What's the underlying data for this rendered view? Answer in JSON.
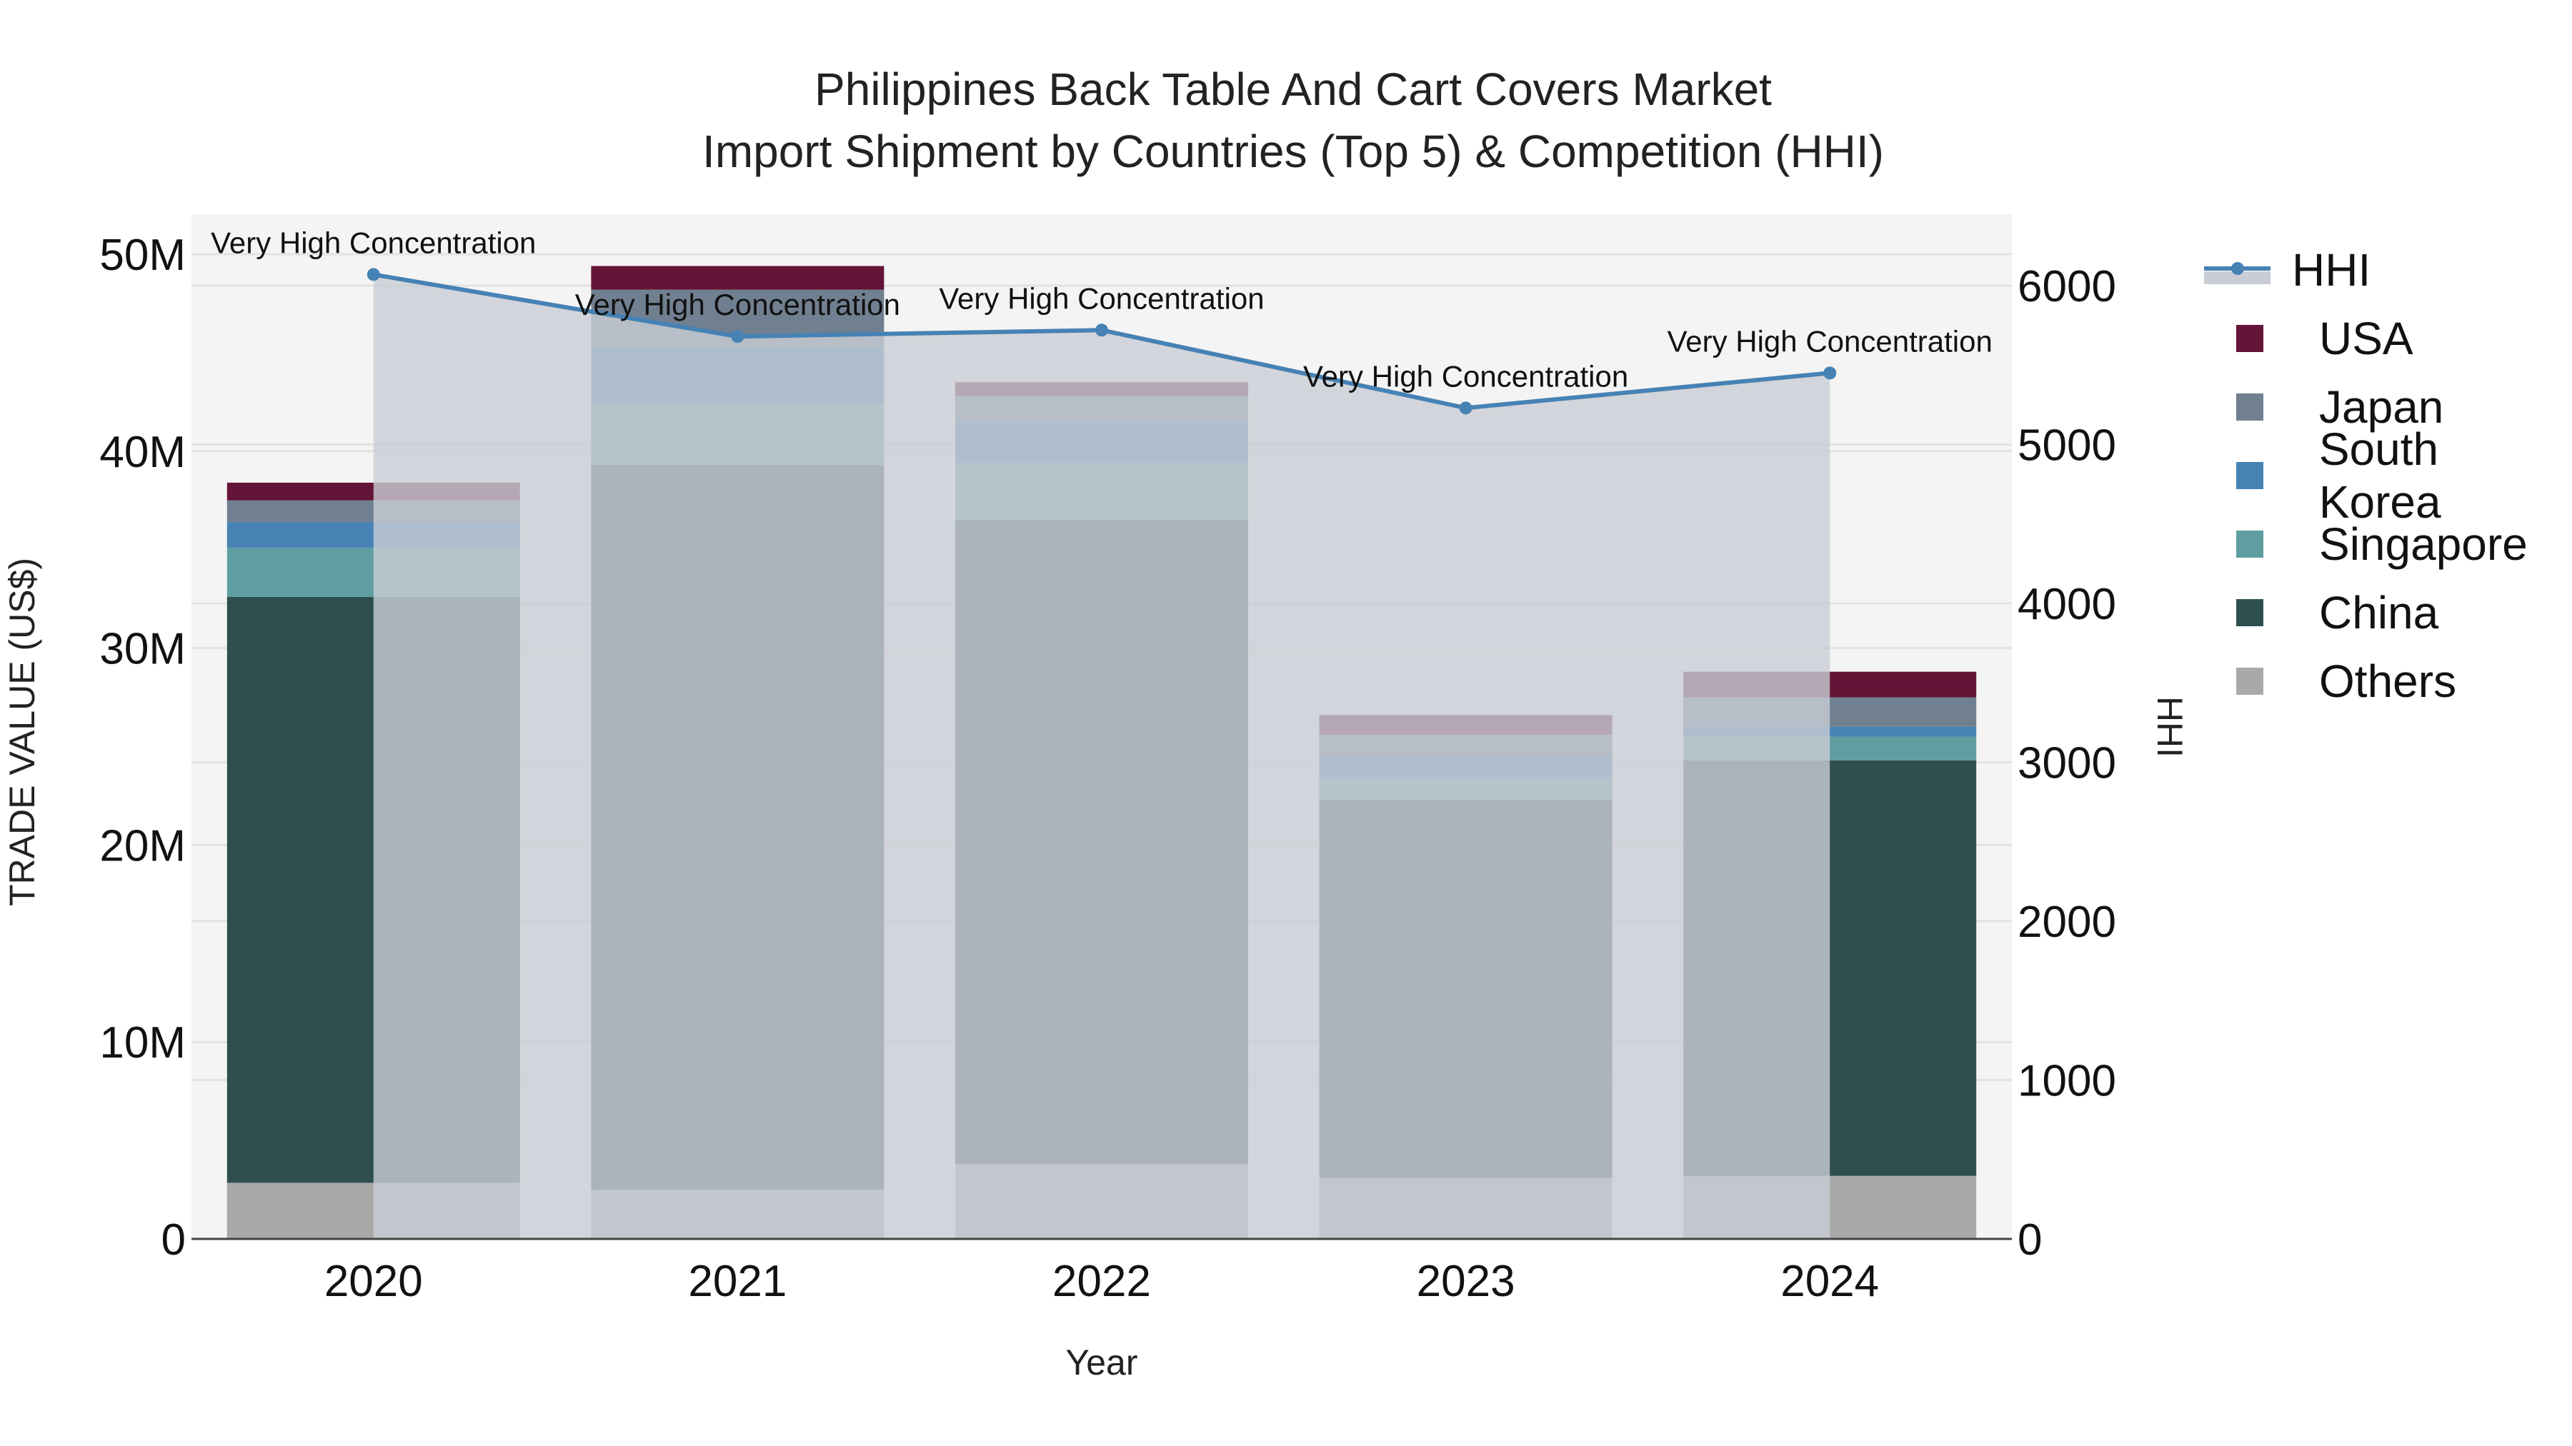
{
  "title": {
    "line1": "Philippines Back Table And Cart Covers Market",
    "line2": "Import Shipment by Countries (Top 5) & Competition (HHI)"
  },
  "axes": {
    "x_label": "Year",
    "y_left_label": "TRADE VALUE (US$)",
    "y_right_label": "HHI",
    "y_left_ticks": [
      "0",
      "10M",
      "20M",
      "30M",
      "40M",
      "50M"
    ],
    "y_right_ticks": [
      "0",
      "1000",
      "2000",
      "3000",
      "4000",
      "5000",
      "6000"
    ]
  },
  "legend": [
    {
      "label": "HHI",
      "type": "line",
      "color": "#4682b4"
    },
    {
      "label": "USA",
      "type": "bar",
      "color": "#641436"
    },
    {
      "label": "Japan",
      "type": "bar",
      "color": "#708090"
    },
    {
      "label": "South Korea",
      "type": "bar",
      "color": "#4682b4"
    },
    {
      "label": "Singapore",
      "type": "bar",
      "color": "#5f9ea0"
    },
    {
      "label": "China",
      "type": "bar",
      "color": "#2f4f4f"
    },
    {
      "label": "Others",
      "type": "bar",
      "color": "#a9a9a9"
    }
  ],
  "colors": {
    "plot_bg": "#f4f4f4",
    "hhi_fill": "#c9cdd5",
    "hhi_line": "#4682b4"
  },
  "chart_data": {
    "type": "bar",
    "stacked": true,
    "title": "Philippines Back Table And Cart Covers Market - Import Shipment by Countries (Top 5) & Competition (HHI)",
    "xlabel": "Year",
    "ylabel": "TRADE VALUE (US$)",
    "y2label": "HHI",
    "ylim": [
      0,
      52000000
    ],
    "y2lim": [
      0,
      6500
    ],
    "categories": [
      "2020",
      "2021",
      "2022",
      "2023",
      "2024"
    ],
    "series": [
      {
        "name": "Others",
        "color": "#a9a9a9",
        "values": [
          2850000,
          2500000,
          3800000,
          3100000,
          3200000
        ]
      },
      {
        "name": "China",
        "color": "#2f4f4f",
        "values": [
          29750000,
          36800000,
          32700000,
          19200000,
          21100000
        ]
      },
      {
        "name": "Singapore",
        "color": "#5f9ea0",
        "values": [
          2500000,
          3100000,
          2900000,
          1100000,
          1200000
        ]
      },
      {
        "name": "South Korea",
        "color": "#4682b4",
        "values": [
          1300000,
          2900000,
          2100000,
          1100000,
          500000
        ]
      },
      {
        "name": "Japan",
        "color": "#708090",
        "values": [
          1100000,
          2900000,
          1300000,
          1100000,
          1500000
        ]
      },
      {
        "name": "USA",
        "color": "#641436",
        "values": [
          900000,
          1200000,
          700000,
          1000000,
          1300000
        ]
      }
    ],
    "line_series": {
      "name": "HHI",
      "axis": "right",
      "color": "#4682b4",
      "values": [
        6070,
        5680,
        5720,
        5230,
        5450
      ],
      "annotations": [
        "Very High Concentration",
        "Very High Concentration",
        "Very High Concentration",
        "Very High Concentration",
        "Very High Concentration"
      ]
    },
    "grid": true,
    "legend_position": "right"
  }
}
